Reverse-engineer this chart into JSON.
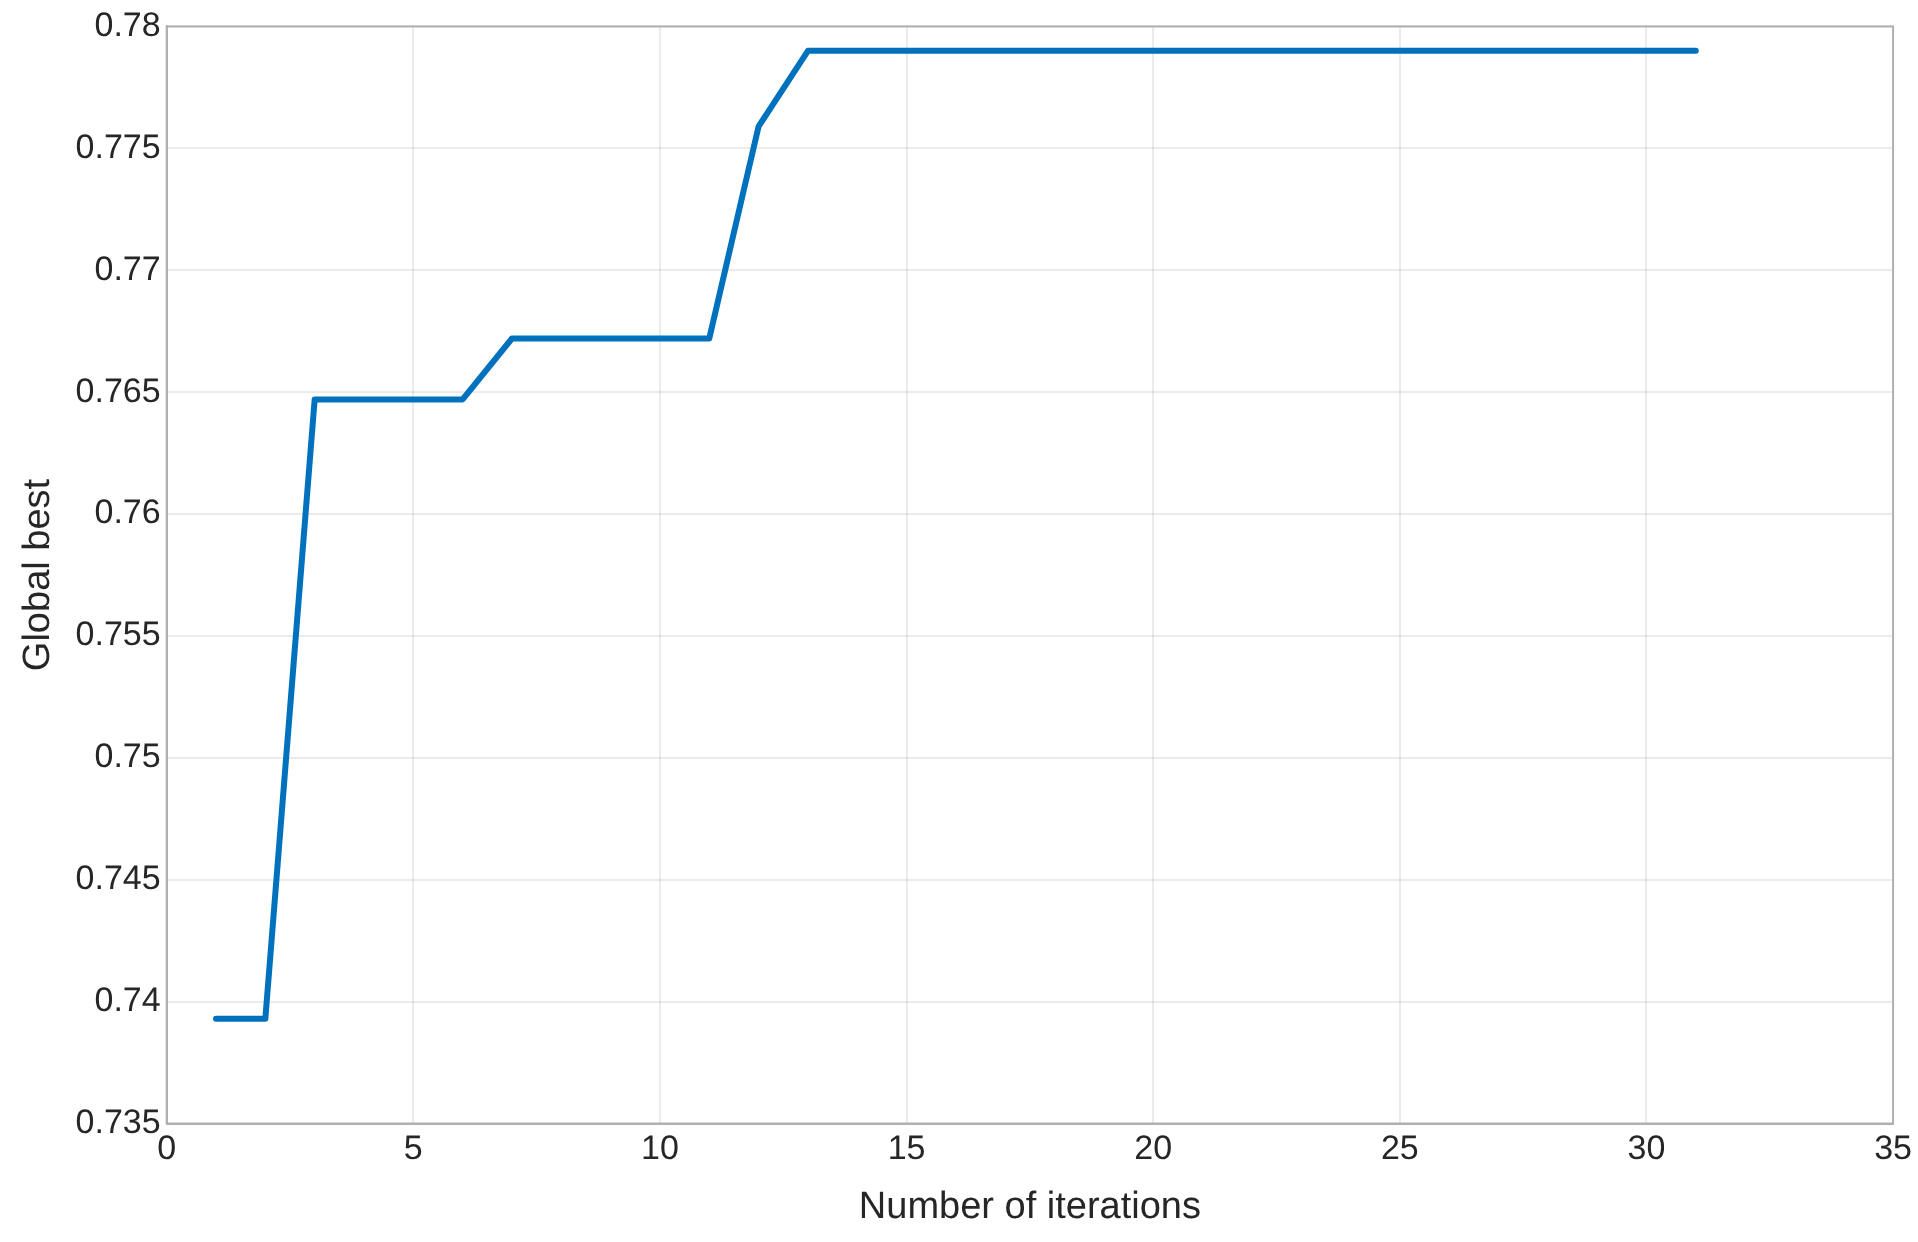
{
  "chart_data": {
    "type": "line",
    "xlabel": "Number of iterations",
    "ylabel": "Global best",
    "x": [
      1,
      2,
      3,
      6,
      7,
      11,
      12,
      13,
      31
    ],
    "series": [
      {
        "color": "#0072bd",
        "values": [
          0.7393,
          0.7393,
          0.7647,
          0.7647,
          0.7672,
          0.7672,
          0.7759,
          0.779,
          0.779
        ]
      }
    ],
    "xlim": [
      0,
      35
    ],
    "xticks": [
      0,
      5,
      10,
      15,
      20,
      25,
      30,
      35
    ],
    "ylim": [
      0.735,
      0.78
    ],
    "yticks": [
      0.735,
      0.74,
      0.745,
      0.75,
      0.755,
      0.76,
      0.765,
      0.77,
      0.775,
      0.78
    ],
    "grid": true,
    "legend": false,
    "marker": "none",
    "line_style": "solid"
  }
}
